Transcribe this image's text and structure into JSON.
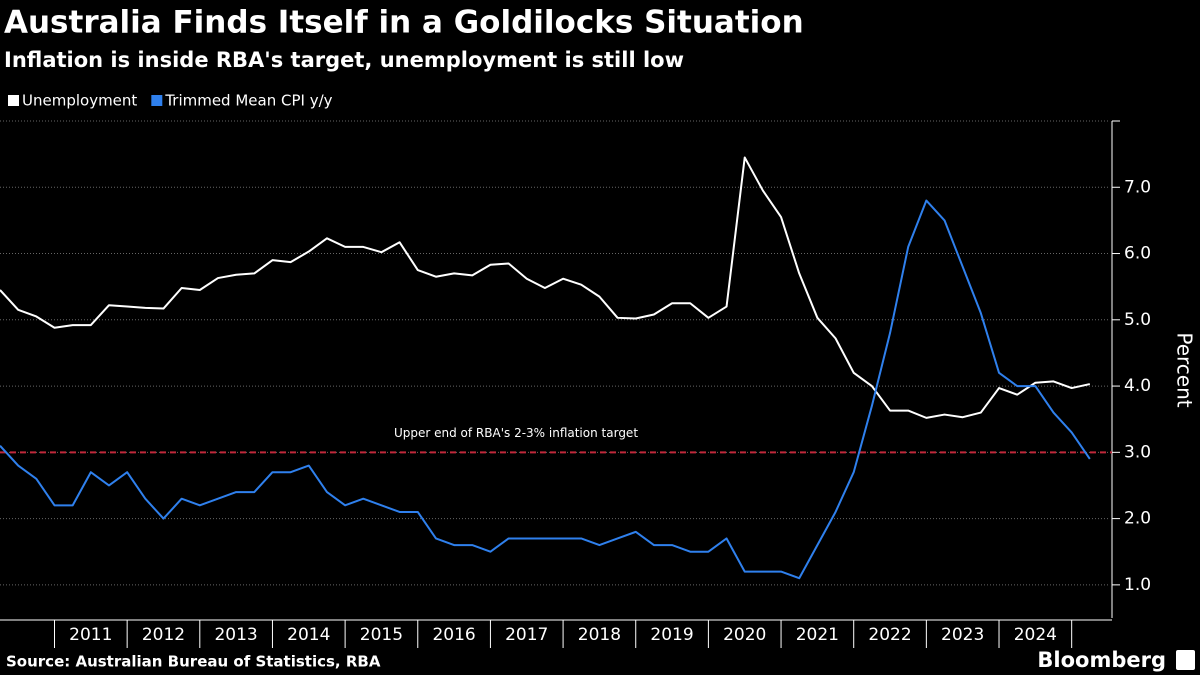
{
  "chart_data": {
    "type": "line",
    "title": "Australia Finds Itself in a Goldilocks Situation",
    "subtitle": "Inflation is inside RBA's target, unemployment is still low",
    "y_axis_label": "Percent",
    "source": "Source: Australian Bureau of Statistics, RBA",
    "brand": "Bloomberg",
    "x": [
      2010.25,
      2010.5,
      2010.75,
      2011,
      2011.25,
      2011.5,
      2011.75,
      2012,
      2012.25,
      2012.5,
      2012.75,
      2013,
      2013.25,
      2013.5,
      2013.75,
      2014,
      2014.25,
      2014.5,
      2014.75,
      2015,
      2015.25,
      2015.5,
      2015.75,
      2016,
      2016.25,
      2016.5,
      2016.75,
      2017,
      2017.25,
      2017.5,
      2017.75,
      2018,
      2018.25,
      2018.5,
      2018.75,
      2019,
      2019.25,
      2019.5,
      2019.75,
      2020,
      2020.25,
      2020.5,
      2020.75,
      2021,
      2021.25,
      2021.5,
      2021.75,
      2022,
      2022.25,
      2022.5,
      2022.75,
      2023,
      2023.25,
      2023.5,
      2023.75,
      2024,
      2024.25,
      2024.5,
      2024.75,
      2025,
      2025.25
    ],
    "series": [
      {
        "name": "Unemployment",
        "color": "#ffffff",
        "values": [
          5.45,
          5.15,
          5.05,
          4.88,
          4.92,
          4.92,
          5.22,
          5.2,
          5.18,
          5.17,
          5.48,
          5.45,
          5.63,
          5.68,
          5.7,
          5.9,
          5.87,
          6.03,
          6.23,
          6.1,
          6.1,
          6.02,
          6.17,
          5.75,
          5.65,
          5.7,
          5.67,
          5.83,
          5.85,
          5.62,
          5.48,
          5.62,
          5.53,
          5.35,
          5.03,
          5.02,
          5.08,
          5.25,
          5.25,
          5.03,
          5.2,
          7.45,
          6.95,
          6.55,
          5.7,
          5.03,
          4.72,
          4.2,
          4.0,
          3.63,
          3.63,
          3.52,
          3.57,
          3.53,
          3.6,
          3.97,
          3.87,
          4.05,
          4.07,
          3.97,
          4.03
        ]
      },
      {
        "name": "Trimmed Mean CPI y/y",
        "color": "#2f80ed",
        "values": [
          3.1,
          2.8,
          2.6,
          2.2,
          2.2,
          2.7,
          2.5,
          2.7,
          2.3,
          2.0,
          2.3,
          2.2,
          2.3,
          2.4,
          2.4,
          2.7,
          2.7,
          2.8,
          2.4,
          2.2,
          2.3,
          2.2,
          2.1,
          2.1,
          1.7,
          1.6,
          1.6,
          1.5,
          1.7,
          1.7,
          1.7,
          1.7,
          1.7,
          1.6,
          1.7,
          1.8,
          1.6,
          1.6,
          1.5,
          1.5,
          1.7,
          1.2,
          1.2,
          1.2,
          1.1,
          1.6,
          2.1,
          2.7,
          3.7,
          4.8,
          6.1,
          6.8,
          6.5,
          5.8,
          5.1,
          4.2,
          4.0,
          4.0,
          3.6,
          3.3,
          2.9
        ]
      }
    ],
    "reference_line": {
      "value": 3,
      "label": "Upper end of RBA's 2-3% inflation target",
      "color": "#c0283a"
    },
    "xlim": [
      2010.25,
      2025.5
    ],
    "xticks": [
      {
        "value": 2011.5,
        "label": "2011"
      },
      {
        "value": 2012.5,
        "label": "2012"
      },
      {
        "value": 2013.5,
        "label": "2013"
      },
      {
        "value": 2014.5,
        "label": "2014"
      },
      {
        "value": 2015.5,
        "label": "2015"
      },
      {
        "value": 2016.5,
        "label": "2016"
      },
      {
        "value": 2017.5,
        "label": "2017"
      },
      {
        "value": 2018.5,
        "label": "2018"
      },
      {
        "value": 2019.5,
        "label": "2019"
      },
      {
        "value": 2020.5,
        "label": "2020"
      },
      {
        "value": 2021.5,
        "label": "2021"
      },
      {
        "value": 2022.5,
        "label": "2022"
      },
      {
        "value": 2023.5,
        "label": "2023"
      },
      {
        "value": 2024.5,
        "label": "2024"
      }
    ],
    "ylim": [
      0.5,
      8
    ],
    "yticks": [
      {
        "value": 1,
        "label": "1.0"
      },
      {
        "value": 2,
        "label": "2.0"
      },
      {
        "value": 3,
        "label": "3.0"
      },
      {
        "value": 4,
        "label": "4.0"
      },
      {
        "value": 5,
        "label": "5.0"
      },
      {
        "value": 6,
        "label": "6.0"
      },
      {
        "value": 7,
        "label": "7.0"
      }
    ],
    "grid": true,
    "legend": "top-left"
  }
}
